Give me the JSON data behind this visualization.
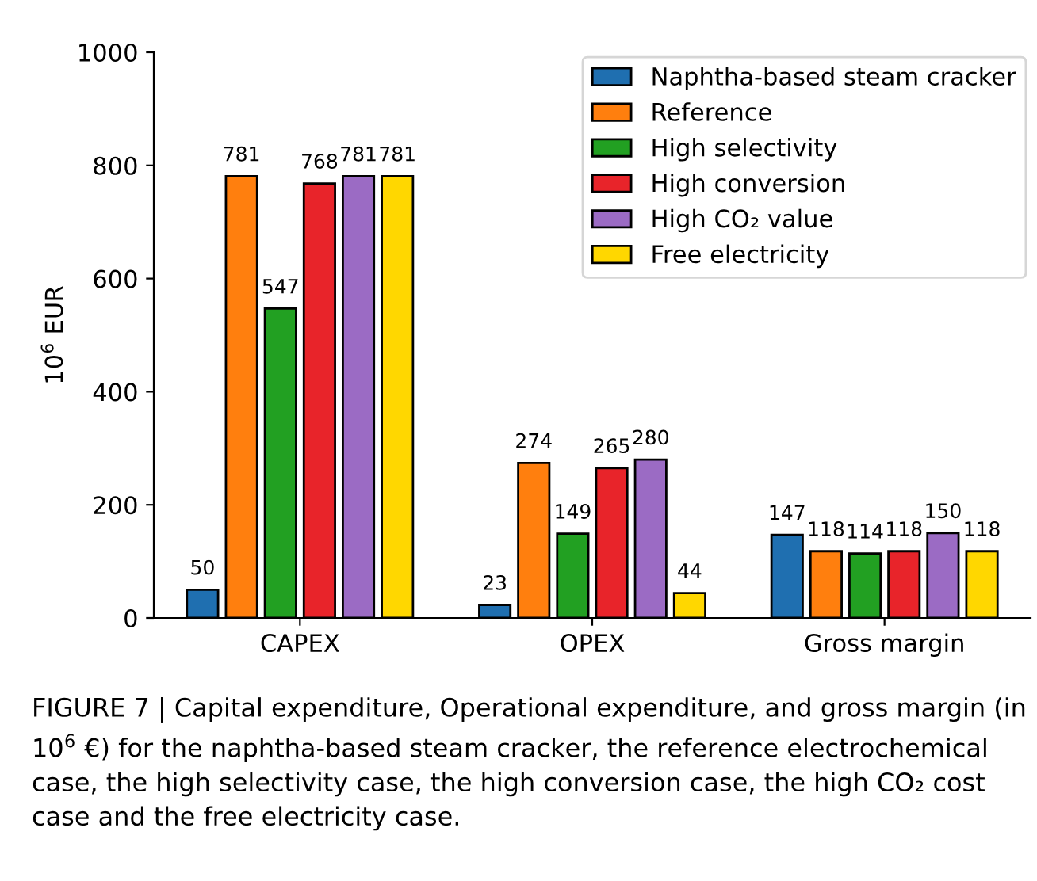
{
  "chart_data": {
    "type": "bar",
    "categories": [
      "CAPEX",
      "OPEX",
      "Gross margin"
    ],
    "ylabel": "10$^{6}$ EUR",
    "ylim": [
      0,
      1000
    ],
    "yticks": [
      0,
      200,
      400,
      600,
      800,
      1000
    ],
    "grid": false,
    "legend": "top right",
    "data_labels": true,
    "series": [
      {
        "name": "Naphtha-based steam cracker",
        "color": "#1f6fb0",
        "values": [
          50,
          23,
          147
        ]
      },
      {
        "name": "Reference",
        "color": "#ff7f0e",
        "values": [
          781,
          274,
          118
        ]
      },
      {
        "name": "High selectivity",
        "color": "#22a022",
        "values": [
          547,
          149,
          114
        ]
      },
      {
        "name": "High conversion",
        "color": "#e8242a",
        "values": [
          768,
          265,
          118
        ]
      },
      {
        "name": "High CO₂ value",
        "color": "#9b6bc4",
        "values": [
          781,
          280,
          150
        ]
      },
      {
        "name": "Free electricity",
        "color": "#ffd700",
        "values": [
          781,
          44,
          118
        ]
      }
    ],
    "annotations": [
      "FIGURE 7 | Capital expenditure, Operational expenditure, and gross margin (in 10$^{6}$ €) for the naphtha-based steam cracker, the reference electrochemical case, the high selectivity case, the high conversion case, the high CO₂ cost case and the free electricity case."
    ]
  }
}
